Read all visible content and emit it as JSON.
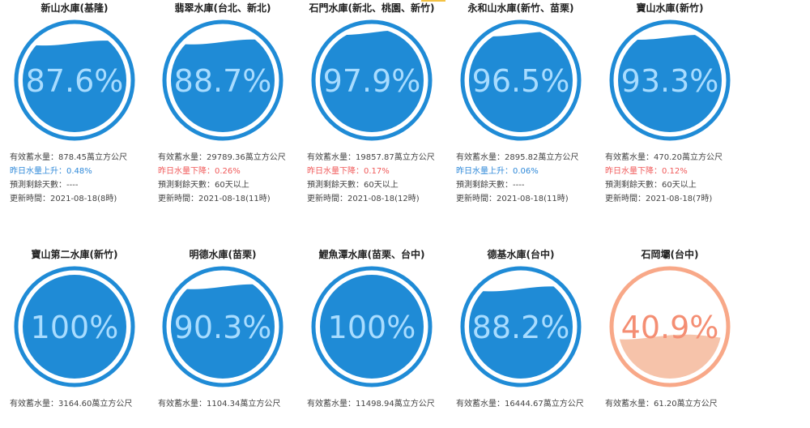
{
  "labels": {
    "effective_prefix": "有效蓄水量：",
    "unit": "萬立方公尺",
    "forecast_prefix": "預測剩餘天數：",
    "update_prefix": "更新時間："
  },
  "colors": {
    "normal": "#1f8bd6",
    "normal_text": "#a8dcff",
    "low_fill": "#f6c3aa",
    "low_ring": "#f8a888",
    "low_text": "#f48e73"
  },
  "reservoirs": [
    {
      "name": "新山水庫(基隆)",
      "percent": 87.6,
      "percent_label": "87.6%",
      "effective": "878.45",
      "change": "昨日水量上升：0.48%",
      "change_dir": "up",
      "days": "----",
      "updated": "2021-08-18(8時)"
    },
    {
      "name": "翡翠水庫(台北、新北)",
      "percent": 88.7,
      "percent_label": "88.7%",
      "effective": "29789.36",
      "change": "昨日水量下降：0.26%",
      "change_dir": "down",
      "days": "60天以上",
      "updated": "2021-08-18(11時)"
    },
    {
      "name": "石門水庫(新北、桃園、新竹)",
      "percent": 97.9,
      "percent_label": "97.9%",
      "effective": "19857.87",
      "change": "昨日水量下降：0.17%",
      "change_dir": "down",
      "days": "60天以上",
      "updated": "2021-08-18(12時)"
    },
    {
      "name": "永和山水庫(新竹、苗栗)",
      "percent": 96.5,
      "percent_label": "96.5%",
      "effective": "2895.82",
      "change": "昨日水量上升：0.06%",
      "change_dir": "up",
      "days": "----",
      "updated": "2021-08-18(11時)"
    },
    {
      "name": "寶山水庫(新竹)",
      "percent": 93.3,
      "percent_label": "93.3%",
      "effective": "470.20",
      "change": "昨日水量下降：0.12%",
      "change_dir": "down",
      "days": "60天以上",
      "updated": "2021-08-18(7時)"
    },
    {
      "name": "寶山第二水庫(新竹)",
      "percent": 100,
      "percent_label": "100%",
      "effective": "3164.60"
    },
    {
      "name": "明德水庫(苗栗)",
      "percent": 90.3,
      "percent_label": "90.3%",
      "effective": "1104.34"
    },
    {
      "name": "鯉魚潭水庫(苗栗、台中)",
      "percent": 100,
      "percent_label": "100%",
      "effective": "11498.94"
    },
    {
      "name": "德基水庫(台中)",
      "percent": 88.2,
      "percent_label": "88.2%",
      "effective": "16444.67"
    },
    {
      "name": "石岡壩(台中)",
      "percent": 40.9,
      "percent_label": "40.9%",
      "effective": "61.20"
    }
  ]
}
